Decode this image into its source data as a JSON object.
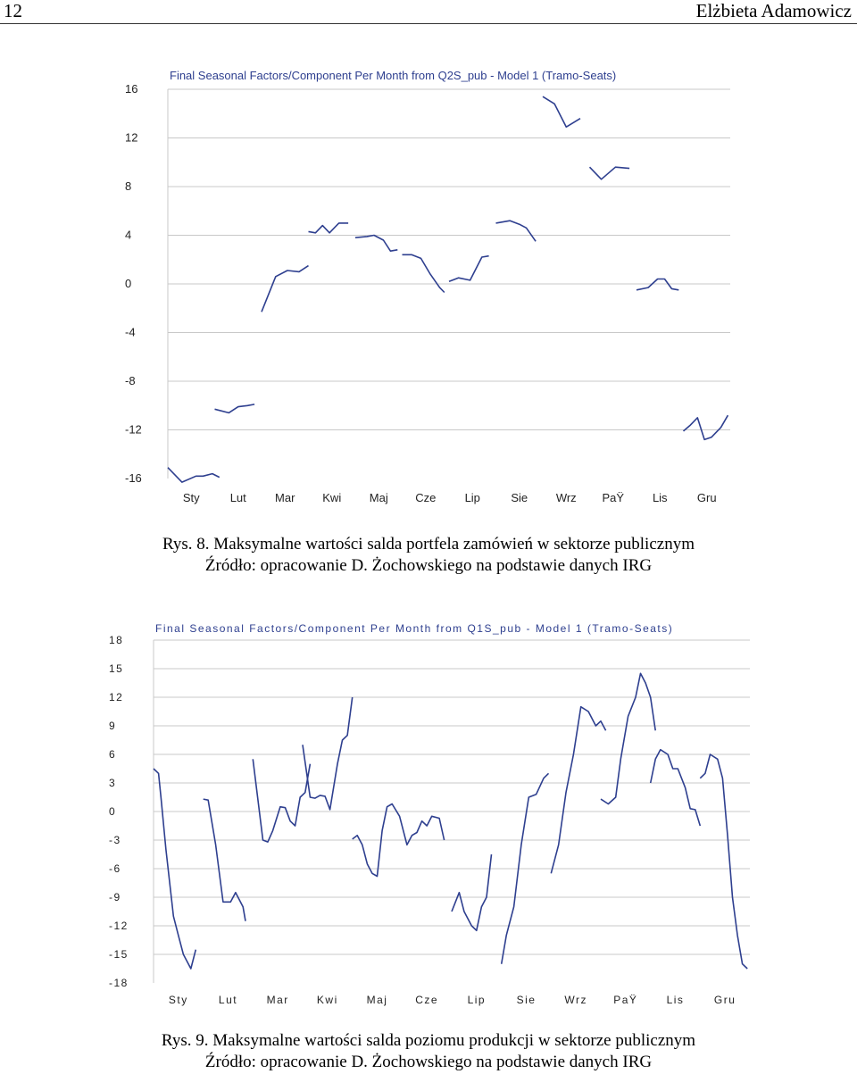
{
  "header": {
    "page_number": "12",
    "author": "Elżbieta Adamowicz"
  },
  "chart_data": [
    {
      "type": "line",
      "title": "Final Seasonal Factors/Component Per Month from Q2S_pub - Model 1 (Tramo-Seats)",
      "categories": [
        "Sty",
        "Lut",
        "Mar",
        "Kwi",
        "Maj",
        "Cze",
        "Lip",
        "Sie",
        "Wrz",
        "PaŸ",
        "Lis",
        "Gru"
      ],
      "y_ticks": [
        "16",
        "12",
        "8",
        "4",
        "0",
        "-4",
        "-8",
        "-12",
        "-16"
      ],
      "ylim": [
        -16,
        16
      ],
      "grid": true,
      "series_color": "#2e3f8f",
      "segments": [
        [
          [
            0.0,
            -15.1
          ],
          [
            0.3,
            -16.3
          ],
          [
            0.6,
            -15.8
          ],
          [
            0.75,
            -15.8
          ],
          [
            0.95,
            -15.6
          ],
          [
            1.1,
            -15.9
          ]
        ],
        [
          [
            1.0,
            -10.3
          ],
          [
            1.3,
            -10.6
          ],
          [
            1.5,
            -10.1
          ],
          [
            1.7,
            -10.0
          ],
          [
            1.85,
            -9.9
          ]
        ],
        [
          [
            2.0,
            -2.3
          ],
          [
            2.3,
            0.6
          ],
          [
            2.55,
            1.1
          ],
          [
            2.8,
            1.0
          ],
          [
            3.0,
            1.5
          ]
        ],
        [
          [
            3.0,
            4.3
          ],
          [
            3.15,
            4.2
          ],
          [
            3.3,
            4.8
          ],
          [
            3.45,
            4.2
          ],
          [
            3.65,
            5.0
          ],
          [
            3.85,
            5.0
          ]
        ],
        [
          [
            4.0,
            3.8
          ],
          [
            4.25,
            3.9
          ],
          [
            4.4,
            4.0
          ],
          [
            4.6,
            3.6
          ],
          [
            4.75,
            2.7
          ],
          [
            4.9,
            2.8
          ]
        ],
        [
          [
            5.0,
            2.4
          ],
          [
            5.2,
            2.4
          ],
          [
            5.4,
            2.1
          ],
          [
            5.6,
            0.8
          ],
          [
            5.8,
            -0.3
          ],
          [
            5.9,
            -0.7
          ]
        ],
        [
          [
            6.0,
            0.2
          ],
          [
            6.2,
            0.5
          ],
          [
            6.45,
            0.3
          ],
          [
            6.7,
            2.2
          ],
          [
            6.85,
            2.3
          ]
        ],
        [
          [
            7.0,
            5.0
          ],
          [
            7.3,
            5.2
          ],
          [
            7.5,
            4.9
          ],
          [
            7.65,
            4.6
          ],
          [
            7.85,
            3.5
          ]
        ],
        [
          [
            8.0,
            15.4
          ],
          [
            8.25,
            14.8
          ],
          [
            8.5,
            12.9
          ],
          [
            8.8,
            13.6
          ]
        ],
        [
          [
            9.0,
            9.6
          ],
          [
            9.25,
            8.6
          ],
          [
            9.55,
            9.6
          ],
          [
            9.85,
            9.5
          ]
        ],
        [
          [
            10.0,
            -0.5
          ],
          [
            10.25,
            -0.3
          ],
          [
            10.45,
            0.4
          ],
          [
            10.6,
            0.4
          ],
          [
            10.75,
            -0.4
          ],
          [
            10.9,
            -0.5
          ]
        ],
        [
          [
            11.0,
            -12.1
          ],
          [
            11.15,
            -11.6
          ],
          [
            11.3,
            -11.0
          ],
          [
            11.45,
            -12.8
          ],
          [
            11.6,
            -12.6
          ],
          [
            11.8,
            -11.8
          ],
          [
            11.95,
            -10.8
          ]
        ]
      ]
    },
    {
      "type": "line",
      "title": "Final Seasonal Factors/Component Per Month from Q1S_pub - Model 1 (Tramo-Seats)",
      "categories": [
        "Sty",
        "Lut",
        "Mar",
        "Kwi",
        "Maj",
        "Cze",
        "Lip",
        "Sie",
        "Wrz",
        "PaŸ",
        "Lis",
        "Gru"
      ],
      "y_ticks": [
        "18",
        "15",
        "12",
        "9",
        "6",
        "3",
        "0",
        "-3",
        "-6",
        "-9",
        "-12",
        "-15",
        "-18"
      ],
      "ylim": [
        -18,
        18
      ],
      "grid": true,
      "series_color": "#2e3f8f",
      "segments": [
        [
          [
            0.0,
            4.5
          ],
          [
            0.1,
            4.0
          ],
          [
            0.15,
            1.5
          ],
          [
            0.25,
            -4.0
          ],
          [
            0.4,
            -11.0
          ],
          [
            0.5,
            -13.0
          ],
          [
            0.6,
            -15.0
          ],
          [
            0.75,
            -16.5
          ],
          [
            0.85,
            -14.5
          ]
        ],
        [
          [
            1.0,
            1.3
          ],
          [
            1.1,
            1.2
          ],
          [
            1.25,
            -3.5
          ],
          [
            1.4,
            -9.5
          ],
          [
            1.55,
            -9.5
          ],
          [
            1.65,
            -8.5
          ],
          [
            1.8,
            -10.0
          ],
          [
            1.85,
            -11.5
          ]
        ],
        [
          [
            2.0,
            5.5
          ],
          [
            2.2,
            -3.0
          ],
          [
            2.3,
            -3.2
          ],
          [
            2.4,
            -2.0
          ],
          [
            2.55,
            0.5
          ],
          [
            2.65,
            0.4
          ],
          [
            2.75,
            -1.0
          ],
          [
            2.85,
            -1.5
          ],
          [
            2.95,
            1.5
          ],
          [
            3.05,
            2.0
          ],
          [
            3.15,
            5.0
          ]
        ],
        [
          [
            3.0,
            7.0
          ],
          [
            3.15,
            1.5
          ],
          [
            3.25,
            1.4
          ],
          [
            3.35,
            1.7
          ],
          [
            3.45,
            1.6
          ],
          [
            3.55,
            0.2
          ],
          [
            3.7,
            5.0
          ],
          [
            3.8,
            7.5
          ],
          [
            3.9,
            8.0
          ],
          [
            4.0,
            12.0
          ]
        ],
        [
          [
            4.0,
            -2.9
          ],
          [
            4.1,
            -2.5
          ],
          [
            4.2,
            -3.5
          ],
          [
            4.3,
            -5.5
          ],
          [
            4.4,
            -6.5
          ],
          [
            4.5,
            -6.8
          ],
          [
            4.6,
            -2.0
          ],
          [
            4.7,
            0.5
          ],
          [
            4.8,
            0.8
          ],
          [
            4.95,
            -0.5
          ],
          [
            5.1,
            -3.5
          ],
          [
            5.2,
            -2.5
          ],
          [
            5.3,
            -2.2
          ],
          [
            5.4,
            -1.0
          ],
          [
            5.5,
            -1.5
          ],
          [
            5.6,
            -0.5
          ],
          [
            5.75,
            -0.7
          ],
          [
            5.85,
            -3.0
          ]
        ],
        [
          [
            6.0,
            -10.5
          ],
          [
            6.15,
            -8.5
          ],
          [
            6.25,
            -10.5
          ],
          [
            6.4,
            -12.0
          ],
          [
            6.5,
            -12.5
          ],
          [
            6.6,
            -10.0
          ],
          [
            6.7,
            -9.0
          ],
          [
            6.8,
            -4.5
          ]
        ],
        [
          [
            7.0,
            -16.0
          ],
          [
            7.1,
            -13.0
          ],
          [
            7.25,
            -10.0
          ],
          [
            7.4,
            -3.5
          ],
          [
            7.55,
            1.5
          ],
          [
            7.7,
            1.8
          ],
          [
            7.85,
            3.5
          ],
          [
            7.95,
            4.0
          ]
        ],
        [
          [
            8.0,
            -6.5
          ],
          [
            8.15,
            -3.5
          ],
          [
            8.3,
            2.0
          ],
          [
            8.45,
            6.0
          ],
          [
            8.6,
            11.0
          ],
          [
            8.75,
            10.5
          ],
          [
            8.9,
            9.0
          ],
          [
            9.0,
            9.5
          ],
          [
            9.1,
            8.5
          ]
        ],
        [
          [
            9.0,
            1.3
          ],
          [
            9.15,
            0.8
          ],
          [
            9.3,
            1.5
          ],
          [
            9.4,
            5.5
          ],
          [
            9.55,
            10.0
          ],
          [
            9.7,
            12.0
          ],
          [
            9.8,
            14.5
          ],
          [
            9.9,
            13.5
          ],
          [
            10.0,
            12.0
          ],
          [
            10.1,
            8.5
          ]
        ],
        [
          [
            10.0,
            3.0
          ],
          [
            10.1,
            5.5
          ],
          [
            10.2,
            6.5
          ],
          [
            10.35,
            6.0
          ],
          [
            10.45,
            4.5
          ],
          [
            10.55,
            4.5
          ],
          [
            10.7,
            2.5
          ],
          [
            10.8,
            0.3
          ],
          [
            10.9,
            0.2
          ],
          [
            11.0,
            -1.5
          ]
        ],
        [
          [
            11.0,
            3.5
          ],
          [
            11.1,
            4.0
          ],
          [
            11.2,
            6.0
          ],
          [
            11.35,
            5.5
          ],
          [
            11.45,
            3.5
          ],
          [
            11.55,
            -2.5
          ],
          [
            11.65,
            -9.0
          ],
          [
            11.75,
            -13.0
          ],
          [
            11.85,
            -16.0
          ],
          [
            11.95,
            -16.5
          ]
        ]
      ]
    }
  ],
  "captions": [
    {
      "line1": "Rys. 8. Maksymalne wartości salda portfela zamówień w sektorze publicznym",
      "line2": "Źródło: opracowanie D. Żochowskiego na podstawie danych IRG"
    },
    {
      "line1": "Rys. 9. Maksymalne wartości salda poziomu produkcji w sektorze publicznym",
      "line2": "Źródło: opracowanie D. Żochowskiego na podstawie danych IRG"
    }
  ]
}
